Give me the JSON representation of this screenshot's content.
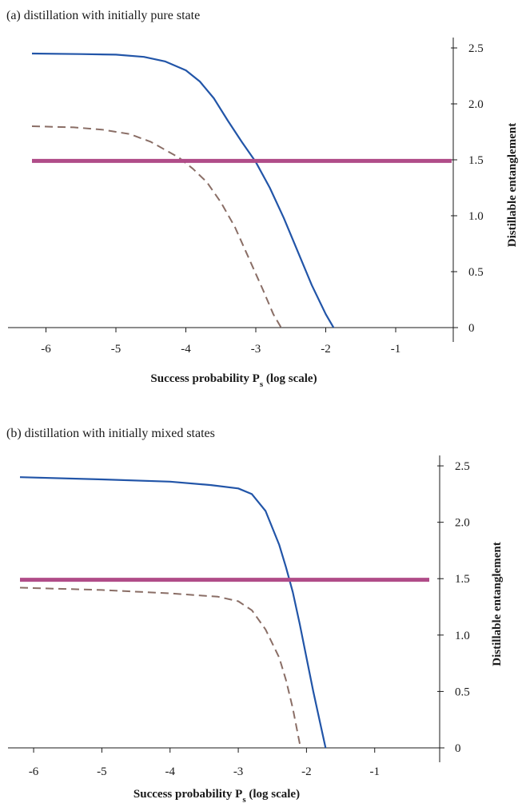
{
  "chart_data": [
    {
      "type": "line",
      "title": "(a) distillation with initially pure state",
      "xlabel": "Success probability P",
      "xlabel_sub": "s",
      "xlabel_suffix": " (log scale)",
      "ylabel": "Distillable entanglement",
      "xlim": [
        -6.2,
        -0.2
      ],
      "ylim": [
        0,
        2.55
      ],
      "x_ticks": [
        -6,
        -5,
        -4,
        -3,
        -2,
        -1
      ],
      "x_tick_labels": [
        "-6",
        "-5",
        "-4",
        "-3",
        "-2",
        "-1"
      ],
      "y_ticks": [
        0,
        0.5,
        1.0,
        1.5,
        2.0,
        2.5
      ],
      "y_tick_labels": [
        "0",
        "0.5",
        "1.0",
        "1.5",
        "2.0",
        "2.5"
      ],
      "y_axis_side": "right",
      "series": [
        {
          "color": "#2255a8",
          "dash": "solid",
          "width": 2.2,
          "points": [
            [
              -6.2,
              2.45
            ],
            [
              -5.5,
              2.445
            ],
            [
              -5.0,
              2.44
            ],
            [
              -4.6,
              2.42
            ],
            [
              -4.3,
              2.38
            ],
            [
              -4.0,
              2.3
            ],
            [
              -3.8,
              2.2
            ],
            [
              -3.6,
              2.05
            ],
            [
              -3.4,
              1.85
            ],
            [
              -3.2,
              1.66
            ],
            [
              -3.0,
              1.48
            ],
            [
              -2.8,
              1.25
            ],
            [
              -2.6,
              0.98
            ],
            [
              -2.4,
              0.68
            ],
            [
              -2.2,
              0.38
            ],
            [
              -2.0,
              0.12
            ],
            [
              -1.87,
              -0.02
            ]
          ]
        },
        {
          "color": "#8a6e66",
          "dash": "dashed",
          "width": 2,
          "points": [
            [
              -6.2,
              1.8
            ],
            [
              -5.6,
              1.79
            ],
            [
              -5.2,
              1.77
            ],
            [
              -4.8,
              1.73
            ],
            [
              -4.5,
              1.66
            ],
            [
              -4.3,
              1.59
            ],
            [
              -4.1,
              1.52
            ],
            [
              -3.9,
              1.42
            ],
            [
              -3.7,
              1.3
            ],
            [
              -3.5,
              1.12
            ],
            [
              -3.3,
              0.9
            ],
            [
              -3.1,
              0.62
            ],
            [
              -2.9,
              0.34
            ],
            [
              -2.75,
              0.12
            ],
            [
              -2.62,
              -0.02
            ]
          ]
        },
        {
          "color": "#b04c88",
          "dash": "solid",
          "width": 5,
          "points": [
            [
              -6.2,
              1.49
            ],
            [
              -0.2,
              1.49
            ]
          ]
        }
      ]
    },
    {
      "type": "line",
      "title": "(b) distillation with initially  mixed states",
      "xlabel": "Success probability P",
      "xlabel_sub": "s",
      "xlabel_suffix": " (log scale)",
      "ylabel": "Distillable entanglement",
      "xlim": [
        -6.2,
        -0.2
      ],
      "ylim": [
        0,
        2.55
      ],
      "x_ticks": [
        -6,
        -5,
        -4,
        -3,
        -2,
        -1
      ],
      "x_tick_labels": [
        "-6",
        "-5",
        "-4",
        "-3",
        "-2",
        "-1"
      ],
      "y_ticks": [
        0,
        0.5,
        1.0,
        1.5,
        2.0,
        2.5
      ],
      "y_tick_labels": [
        "0",
        "0.5",
        "1.0",
        "1.5",
        "2.0",
        "2.5"
      ],
      "y_axis_side": "right",
      "series": [
        {
          "color": "#2255a8",
          "dash": "solid",
          "width": 2.2,
          "points": [
            [
              -6.2,
              2.4
            ],
            [
              -5.0,
              2.38
            ],
            [
              -4.0,
              2.36
            ],
            [
              -3.4,
              2.33
            ],
            [
              -3.0,
              2.3
            ],
            [
              -2.8,
              2.25
            ],
            [
              -2.6,
              2.1
            ],
            [
              -2.4,
              1.8
            ],
            [
              -2.3,
              1.6
            ],
            [
              -2.2,
              1.38
            ],
            [
              -2.1,
              1.1
            ],
            [
              -2.0,
              0.8
            ],
            [
              -1.9,
              0.5
            ],
            [
              -1.8,
              0.22
            ],
            [
              -1.72,
              0.0
            ],
            [
              -1.7,
              -0.05
            ]
          ]
        },
        {
          "color": "#8a6e66",
          "dash": "dashed",
          "width": 2,
          "points": [
            [
              -6.2,
              1.42
            ],
            [
              -5.0,
              1.4
            ],
            [
              -4.0,
              1.37
            ],
            [
              -3.3,
              1.34
            ],
            [
              -3.0,
              1.3
            ],
            [
              -2.8,
              1.22
            ],
            [
              -2.6,
              1.05
            ],
            [
              -2.4,
              0.8
            ],
            [
              -2.3,
              0.6
            ],
            [
              -2.2,
              0.35
            ],
            [
              -2.12,
              0.1
            ],
            [
              -2.08,
              -0.02
            ]
          ]
        },
        {
          "color": "#b04c88",
          "dash": "solid",
          "width": 5,
          "points": [
            [
              -6.2,
              1.49
            ],
            [
              -0.2,
              1.49
            ]
          ]
        }
      ]
    }
  ]
}
